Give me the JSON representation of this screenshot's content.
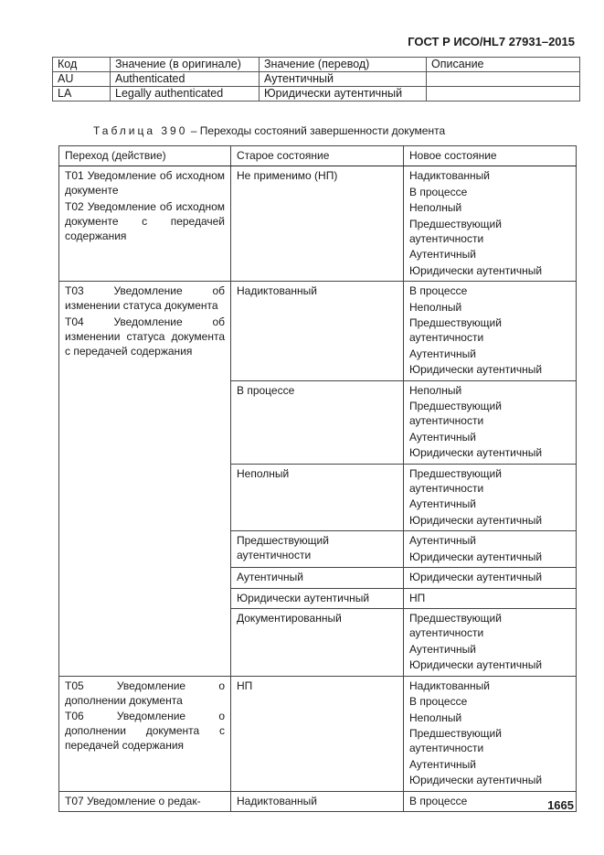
{
  "header": {
    "standard": "ГОСТ Р ИСО/HL7 27931–2015"
  },
  "code_table": {
    "columns": [
      "Код",
      "Значение (в оригинале)",
      "Значение (перевод)",
      "Описание"
    ],
    "rows": [
      [
        "AU",
        "Authenticated",
        "Аутентичный",
        ""
      ],
      [
        "LA",
        "Legally authenticated",
        "Юридически аутентичный",
        ""
      ]
    ]
  },
  "caption": {
    "label": "Таблица 390",
    "dash": "–",
    "title": "Переходы состояний завершенности документа"
  },
  "transitions_table": {
    "columns": [
      "Переход (действие)",
      "Старое состояние",
      "Новое состояние"
    ],
    "groups": [
      {
        "actions": [
          "T01 Уведомление об исходном документе",
          "T02 Уведомление об исходном документе с передачей содержания"
        ],
        "states": [
          {
            "old": "Не применимо (НП)",
            "new": [
              "Надиктованный",
              "В процессе",
              "Неполный",
              "Предшествующий аутентичности",
              "Аутентичный",
              "Юридически аутентичный"
            ]
          }
        ]
      },
      {
        "actions": [
          "T03 Уведомление об изменении статуса документа",
          "T04 Уведомление об изменении статуса документа с передачей содержания"
        ],
        "states": [
          {
            "old": "Надиктованный",
            "new": [
              "В процессе",
              "Неполный",
              "Предшествующий аутентичности",
              "Аутентичный",
              "Юридически аутентичный"
            ]
          },
          {
            "old": "В процессе",
            "new": [
              "Неполный",
              "Предшествующий аутентичности",
              "Аутентичный",
              "Юридически аутентичный"
            ]
          },
          {
            "old": "Неполный",
            "new": [
              "Предшествующий аутентичности",
              "Аутентичный",
              "Юридически аутентичный"
            ]
          },
          {
            "old": "Предшествующий аутентичности",
            "new": [
              "Аутентичный",
              "Юридически аутентичный"
            ]
          },
          {
            "old": "Аутентичный",
            "new": [
              "Юридически аутентичный"
            ]
          },
          {
            "old": "Юридически аутентичный",
            "new": [
              "НП"
            ]
          },
          {
            "old": "Документированный",
            "new": [
              "Предшествующий аутентичности",
              "Аутентичный",
              "Юридически аутентичный"
            ]
          }
        ]
      },
      {
        "actions": [
          "T05 Уведомление о дополнении документа",
          "T06 Уведомление о дополнении документа с передачей содержания"
        ],
        "states": [
          {
            "old": "НП",
            "new": [
              "Надиктованный",
              "В процессе",
              "Неполный",
              "Предшествующий аутентичности",
              "Аутентичный",
              "Юридически аутентичный"
            ]
          }
        ]
      },
      {
        "actions": [
          "T07 Уведомление о редак-"
        ],
        "states": [
          {
            "old": "Надиктованный",
            "new": [
              "В процессе"
            ]
          }
        ]
      }
    ]
  },
  "footer": {
    "page_number": "1665"
  }
}
